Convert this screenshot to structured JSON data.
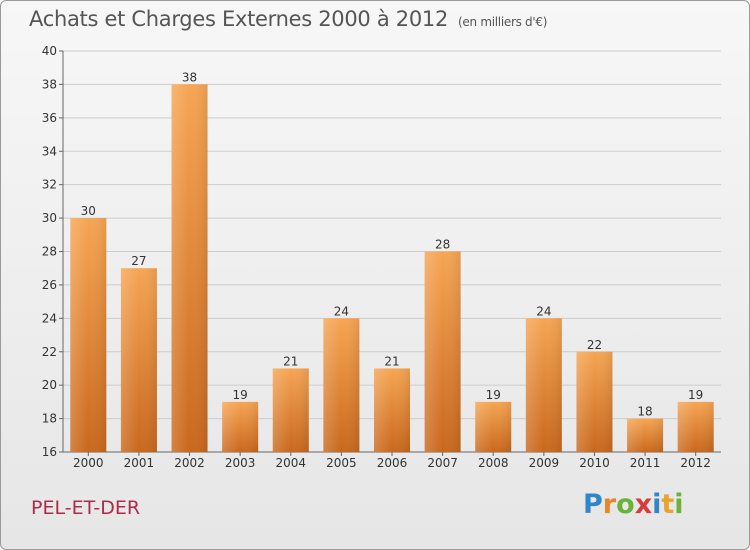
{
  "title": "Achats et Charges Externes 2000 à 2012",
  "subtitle": "(en milliers d'€)",
  "commune": "PEL-ET-DER",
  "logo": {
    "letters": [
      "P",
      "r",
      "o",
      "x",
      "i",
      "t",
      "i"
    ]
  },
  "colors": {
    "bar_top": "#f6a553",
    "bar_bottom": "#c9681d",
    "grid": "#cccccc",
    "commune": "#b02a4a"
  },
  "chart_data": {
    "type": "bar",
    "title": "Achats et Charges Externes 2000 à 2012",
    "subtitle": "(en milliers d'€)",
    "xlabel": "",
    "ylabel": "",
    "categories": [
      "2000",
      "2001",
      "2002",
      "2003",
      "2004",
      "2005",
      "2006",
      "2007",
      "2008",
      "2009",
      "2010",
      "2011",
      "2012"
    ],
    "values": [
      30,
      27,
      38,
      19,
      21,
      24,
      21,
      28,
      19,
      24,
      22,
      18,
      19
    ],
    "data_labels": [
      "30",
      "27",
      "38",
      "19",
      "21",
      "24",
      "21",
      "28",
      "19",
      "24",
      "22",
      "18",
      "19"
    ],
    "ylim": [
      16,
      40
    ],
    "yticks": [
      "16",
      "18",
      "20",
      "22",
      "24",
      "26",
      "28",
      "30",
      "32",
      "34",
      "36",
      "38",
      "40"
    ],
    "grid": true,
    "legend": "none"
  }
}
